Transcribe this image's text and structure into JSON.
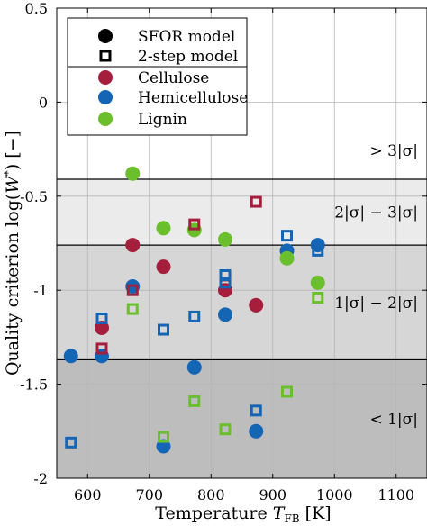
{
  "chart_data": {
    "type": "scatter",
    "xlabel": "Temperature T_FB [K]",
    "xlabel_main": "Temperature ",
    "xlabel_symbol": "T",
    "xlabel_sub": "FB",
    "xlabel_unit": " [K]",
    "ylabel": "Quality criterion log(W*) [−]",
    "ylabel_main": "Quality criterion log(",
    "ylabel_symbol": "W",
    "ylabel_sup": "*",
    "ylabel_unit": ") [−]",
    "xlim": [
      550,
      1150
    ],
    "ylim": [
      -2,
      0.5
    ],
    "xticks": [
      600,
      700,
      800,
      900,
      1000,
      1100
    ],
    "yticks": [
      -2,
      -1.5,
      -1,
      -0.5,
      0,
      0.5
    ],
    "ytick_labels": [
      "-2",
      "-1.5",
      "-1",
      "-0.5",
      "0",
      "0.5"
    ],
    "grid": true,
    "legend_position": "top-left",
    "legend": {
      "markers": [
        {
          "label": "SFOR model",
          "shape": "filled-circle"
        },
        {
          "label": "2-step model",
          "shape": "open-square"
        }
      ],
      "series": [
        {
          "label": "Cellulose",
          "color": "#a51e3c"
        },
        {
          "label": "Hemicellulose",
          "color": "#1565b5"
        },
        {
          "label": "Lignin",
          "color": "#6bbf2c"
        }
      ]
    },
    "bands": [
      {
        "label": "> 3|σ|",
        "from": -0.41,
        "to": 0.5,
        "color": "#ffffff"
      },
      {
        "label": "2|σ| − 3|σ|",
        "from": -0.76,
        "to": -0.41,
        "color": "#ebebeb"
      },
      {
        "label": "1|σ| − 2|σ|",
        "from": -1.37,
        "to": -0.76,
        "color": "#d6d6d6"
      },
      {
        "label": "< 1|σ|",
        "from": -2,
        "to": -1.37,
        "color": "#bdbdbd"
      }
    ],
    "series": [
      {
        "name": "Cellulose",
        "model": "SFOR model",
        "color": "#a51e3c",
        "x": [
          623,
          673,
          723,
          823,
          873
        ],
        "y": [
          -1.2,
          -0.76,
          -0.875,
          -1.0,
          -1.08
        ]
      },
      {
        "name": "Hemicellulose",
        "model": "SFOR model",
        "color": "#1565b5",
        "x": [
          573,
          623,
          673,
          723,
          773,
          823,
          873,
          923,
          973
        ],
        "y": [
          -1.35,
          -1.35,
          -0.98,
          -1.83,
          -1.41,
          -1.13,
          -1.75,
          -0.79,
          -0.76
        ]
      },
      {
        "name": "Lignin",
        "model": "SFOR model",
        "color": "#6bbf2c",
        "x": [
          673,
          723,
          773,
          823,
          923,
          973
        ],
        "y": [
          -0.38,
          -0.67,
          -0.68,
          -0.73,
          -0.83,
          -0.96
        ]
      },
      {
        "name": "Cellulose",
        "model": "2-step model",
        "color": "#a51e3c",
        "x": [
          623,
          673,
          773,
          823,
          873
        ],
        "y": [
          -1.31,
          -1.0,
          -0.65,
          -0.97,
          -0.53
        ]
      },
      {
        "name": "Hemicellulose",
        "model": "2-step model",
        "color": "#1565b5",
        "x": [
          573,
          623,
          723,
          773,
          823,
          823,
          873,
          923,
          973
        ],
        "y": [
          -1.81,
          -1.15,
          -1.21,
          -1.14,
          -0.92,
          -0.96,
          -1.64,
          -0.71,
          -0.79
        ]
      },
      {
        "name": "Lignin",
        "model": "2-step model",
        "color": "#6bbf2c",
        "x": [
          673,
          723,
          773,
          823,
          923,
          973
        ],
        "y": [
          -1.1,
          -1.78,
          -1.59,
          -1.74,
          -1.54,
          -1.04
        ]
      }
    ]
  }
}
